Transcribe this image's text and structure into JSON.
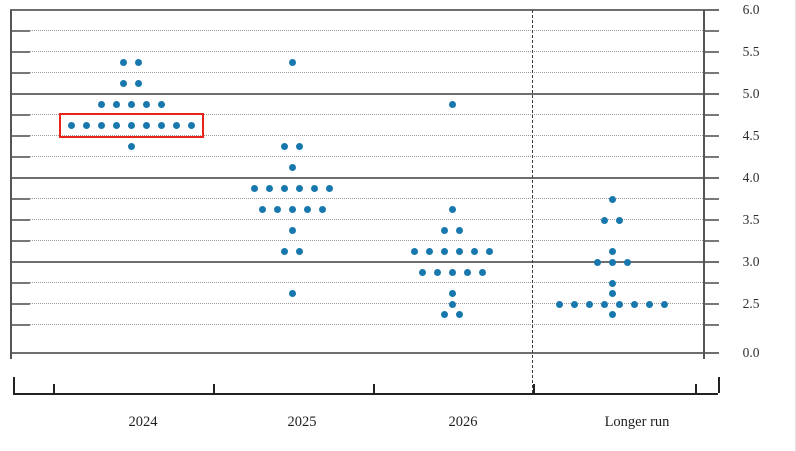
{
  "chart": {
    "y_axis_labels": [
      "6.0",
      "5.5",
      "5.0",
      "4.5",
      "4.0",
      "3.5",
      "3.0",
      "2.5",
      "0.0"
    ],
    "y_axis_label_values": [
      6.0,
      5.5,
      5.0,
      4.5,
      4.0,
      3.5,
      3.0,
      2.5,
      0.0
    ],
    "x_category_labels": [
      "2024",
      "2025",
      "2026",
      "Longer run"
    ]
  },
  "chart_data": {
    "type": "scatter",
    "subtype": "fomc-dot-plot",
    "categories": [
      "2024",
      "2025",
      "2026",
      "Longer run"
    ],
    "y_axis_ticks_labeled": [
      6.0,
      5.5,
      5.0,
      4.5,
      4.0,
      3.5,
      3.0,
      2.5,
      0.0
    ],
    "y_major_grid_values": [
      6.0,
      5.0,
      4.0,
      3.0,
      0.0
    ],
    "y_minor_grid_step": 0.25,
    "y_grid_top": 6.0,
    "y_grid_bottom": 2.25,
    "y_axis_break_to": 0.0,
    "grid_on": true,
    "legend": "none",
    "points": [
      {
        "category": "2024",
        "value": 5.375,
        "count": 2
      },
      {
        "category": "2024",
        "value": 5.125,
        "count": 2
      },
      {
        "category": "2024",
        "value": 4.875,
        "count": 5
      },
      {
        "category": "2024",
        "value": 4.625,
        "count": 9
      },
      {
        "category": "2024",
        "value": 4.375,
        "count": 1
      },
      {
        "category": "2025",
        "value": 5.375,
        "count": 1
      },
      {
        "category": "2025",
        "value": 4.375,
        "count": 2
      },
      {
        "category": "2025",
        "value": 4.125,
        "count": 1
      },
      {
        "category": "2025",
        "value": 3.875,
        "count": 6
      },
      {
        "category": "2025",
        "value": 3.625,
        "count": 5
      },
      {
        "category": "2025",
        "value": 3.375,
        "count": 1
      },
      {
        "category": "2025",
        "value": 3.125,
        "count": 2
      },
      {
        "category": "2025",
        "value": 2.625,
        "count": 1
      },
      {
        "category": "2026",
        "value": 4.875,
        "count": 1
      },
      {
        "category": "2026",
        "value": 3.625,
        "count": 1
      },
      {
        "category": "2026",
        "value": 3.375,
        "count": 2
      },
      {
        "category": "2026",
        "value": 3.125,
        "count": 6
      },
      {
        "category": "2026",
        "value": 2.875,
        "count": 5
      },
      {
        "category": "2026",
        "value": 2.625,
        "count": 1
      },
      {
        "category": "2026",
        "value": 2.5,
        "count": 1
      },
      {
        "category": "2026",
        "value": 2.375,
        "count": 2
      },
      {
        "category": "Longer run",
        "value": 3.75,
        "count": 1
      },
      {
        "category": "Longer run",
        "value": 3.5,
        "count": 2
      },
      {
        "category": "Longer run",
        "value": 3.125,
        "count": 1
      },
      {
        "category": "Longer run",
        "value": 3.0,
        "count": 3
      },
      {
        "category": "Longer run",
        "value": 2.75,
        "count": 1
      },
      {
        "category": "Longer run",
        "value": 2.625,
        "count": 1
      },
      {
        "category": "Longer run",
        "value": 2.5,
        "count": 8
      },
      {
        "category": "Longer run",
        "value": 2.375,
        "count": 1
      }
    ],
    "annotations": [
      {
        "type": "highlight_box",
        "category": "2024",
        "value": 4.625
      }
    ]
  },
  "colors": {
    "dot": "#1878ae",
    "highlight_box": "#e8231a",
    "major_grid": "#6e6e6e",
    "minor_grid": "#9a9a9a",
    "axis": "#222222",
    "text": "#2e2e2e"
  }
}
